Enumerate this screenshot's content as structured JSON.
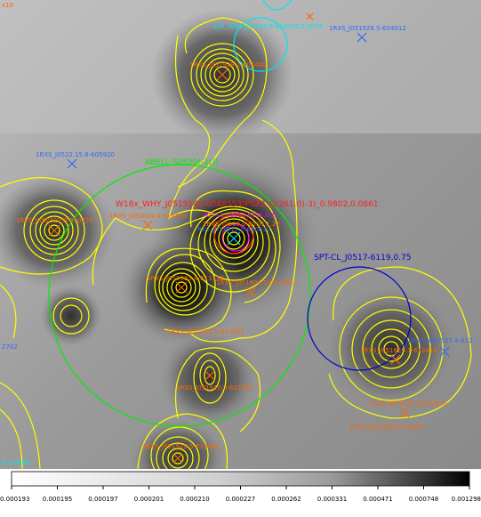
{
  "colors": {
    "contour": "#ffff00",
    "source_marker": "#ff6600",
    "blue_marker": "#3366ff",
    "cyan": "#00e5ee",
    "green": "#00ee00",
    "red": "#ff2020",
    "blue_circle": "#0000cc",
    "magenta": "#ff00ff"
  },
  "labels": {
    "zph_why": "zph_WHY_J05184.8-604510,0.3076",
    "blue_top_right": "1RXS_J051928.5-604012",
    "rxs_top": "1RXS_J051928.2-604400",
    "rxs_left": "1RXS_J0522.15.8-605920",
    "abell": "ABELL S0520(-1())",
    "w18x": "W18x_WHY_J0519142-6048553(PSZ2_G(261.0)-3)_0.9802,0.0861",
    "rxs_j0520": "1RXS_J052002.4-610720",
    "rxs_left_mid": "1RXS_J052320.8-610720",
    "rxs_center": "1RXS_J0519,0-6108.1.22",
    "rxs_center_2": "RXS_J051918.5-610632",
    "pink_text": "ACT-CL_J0519-6106,0.1",
    "rxs_mid_lower": "1RXS_J051925.8-611332",
    "rxs_j051904": "1RXS_J051904.5-611684",
    "spt": "SPT-CL_J0517-6119,0.75",
    "rxs_j051958": "1RXS_J051958.3-612205",
    "rxs_j051629": "1RXS_J051629.1-612418",
    "rxs_j0515": "1RXS_J051527.4-612",
    "rxs_left_edge": "2702",
    "rxs_j051910": "1RXS_J051910.0-612920",
    "rxs_j051615": "1RXS_J051615.2-613120",
    "rxs_j051640": "1RXS_J051640.2-613417",
    "rxs_bottom": "1RXS_J051922.5-613820",
    "bottom_left_val": "4,0.0958",
    "top_left_val": "x10"
  },
  "colorbar": {
    "ticks": [
      "0.000193",
      "0.000195",
      "0.000197",
      "0.000201",
      "0.000210",
      "0.000227",
      "0.000262",
      "0.000331",
      "0.000471",
      "0.000748",
      "0.001298"
    ]
  }
}
